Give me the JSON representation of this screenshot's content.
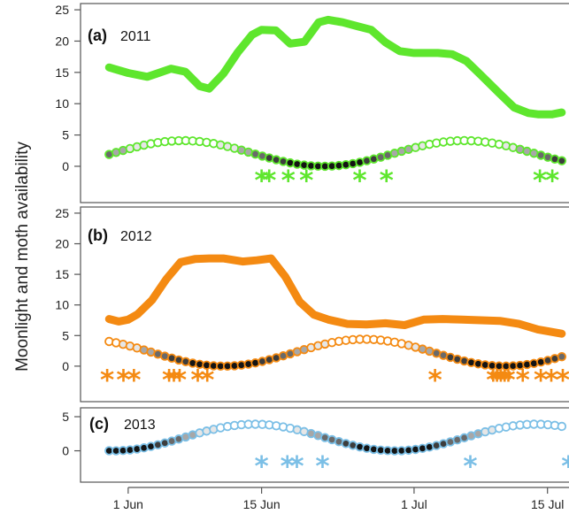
{
  "chart_data": {
    "type": "line",
    "ylabel": "Moonlight and moth availability",
    "x_axis": {
      "unit": "day of year",
      "ticks": [
        {
          "label": "1 Jun",
          "value": 152
        },
        {
          "label": "15 Jun",
          "value": 166
        },
        {
          "label": "1 Jul",
          "value": 182
        },
        {
          "label": "15 Jul",
          "value": 196
        }
      ],
      "range": [
        147,
        199
      ]
    },
    "panels": [
      {
        "letter": "(a)",
        "year": "2011",
        "color": "#5ee62d",
        "yticks": [
          0,
          5,
          10,
          15,
          20,
          25
        ],
        "ylim": [
          -5.8,
          26
        ],
        "moth_availability": {
          "x": [
            150,
            152,
            154,
            155,
            156.5,
            158,
            159.5,
            160.5,
            162,
            163.5,
            165,
            166,
            167.5,
            169,
            170.5,
            172,
            173,
            174.5,
            176,
            177.5,
            179,
            180.5,
            182,
            183,
            184.5,
            186,
            187.5,
            189,
            191,
            192.5,
            194,
            195,
            196.5,
            197.5
          ],
          "y": [
            15.8,
            14.9,
            14.3,
            14.8,
            15.6,
            15.1,
            12.8,
            12.4,
            14.8,
            18.2,
            21.0,
            21.8,
            21.7,
            19.6,
            19.9,
            23.0,
            23.4,
            23.0,
            22.4,
            21.8,
            19.8,
            18.4,
            18.1,
            18.1,
            18.1,
            17.9,
            16.8,
            14.6,
            11.6,
            9.4,
            8.5,
            8.3,
            8.3,
            8.6
          ]
        },
        "moonlight_start": 150,
        "moonlight_end": 197.5,
        "moonlight_min_at": 172.5,
        "moonlight_amplitude": 4.1,
        "asterisks": [
          166,
          166.8,
          168.8,
          170.7,
          176.3,
          179.1,
          195.2,
          196.5
        ]
      },
      {
        "letter": "(b)",
        "year": "2012",
        "color": "#f48a12",
        "yticks": [
          0,
          5,
          10,
          15,
          20,
          25
        ],
        "ylim": [
          -5.8,
          26
        ],
        "moth_availability": {
          "x": [
            150,
            151,
            152,
            153,
            154.5,
            156,
            157.5,
            159,
            160.5,
            162,
            164,
            165.5,
            167,
            168.5,
            170,
            171.5,
            173,
            175,
            177,
            179,
            181,
            183,
            185,
            187,
            189,
            191,
            193,
            195,
            197.5
          ],
          "y": [
            7.7,
            7.3,
            7.6,
            8.5,
            10.8,
            14.2,
            17.0,
            17.5,
            17.6,
            17.6,
            17.1,
            17.3,
            17.6,
            14.6,
            10.5,
            8.4,
            7.6,
            6.9,
            6.8,
            7.0,
            6.7,
            7.6,
            7.7,
            7.6,
            7.5,
            7.4,
            6.9,
            6.0,
            5.3
          ]
        },
        "moonlight_start": 150,
        "moonlight_end": 197.5,
        "moonlight_min_at": 162,
        "moonlight_amplitude": 4.4,
        "asterisks": [
          149.8,
          151.5,
          152.6,
          156.3,
          156.8,
          157.4,
          159.3,
          160.3,
          184.2,
          190.3,
          190.7,
          191.1,
          191.5,
          191.9,
          193.4,
          195.3,
          196.4,
          197.6
        ]
      },
      {
        "letter": "(c)",
        "year": "2013",
        "color": "#7bbfe6",
        "yticks": [
          0,
          5
        ],
        "ylim": [
          -4.6,
          6.3
        ],
        "moonlight_start": 150,
        "moonlight_end": 197.5,
        "moonlight_min_at": 180,
        "moonlight_amplitude": 3.9,
        "asterisks": [
          166,
          168.7,
          169.7,
          172.4,
          187.9,
          198.2
        ]
      }
    ]
  }
}
